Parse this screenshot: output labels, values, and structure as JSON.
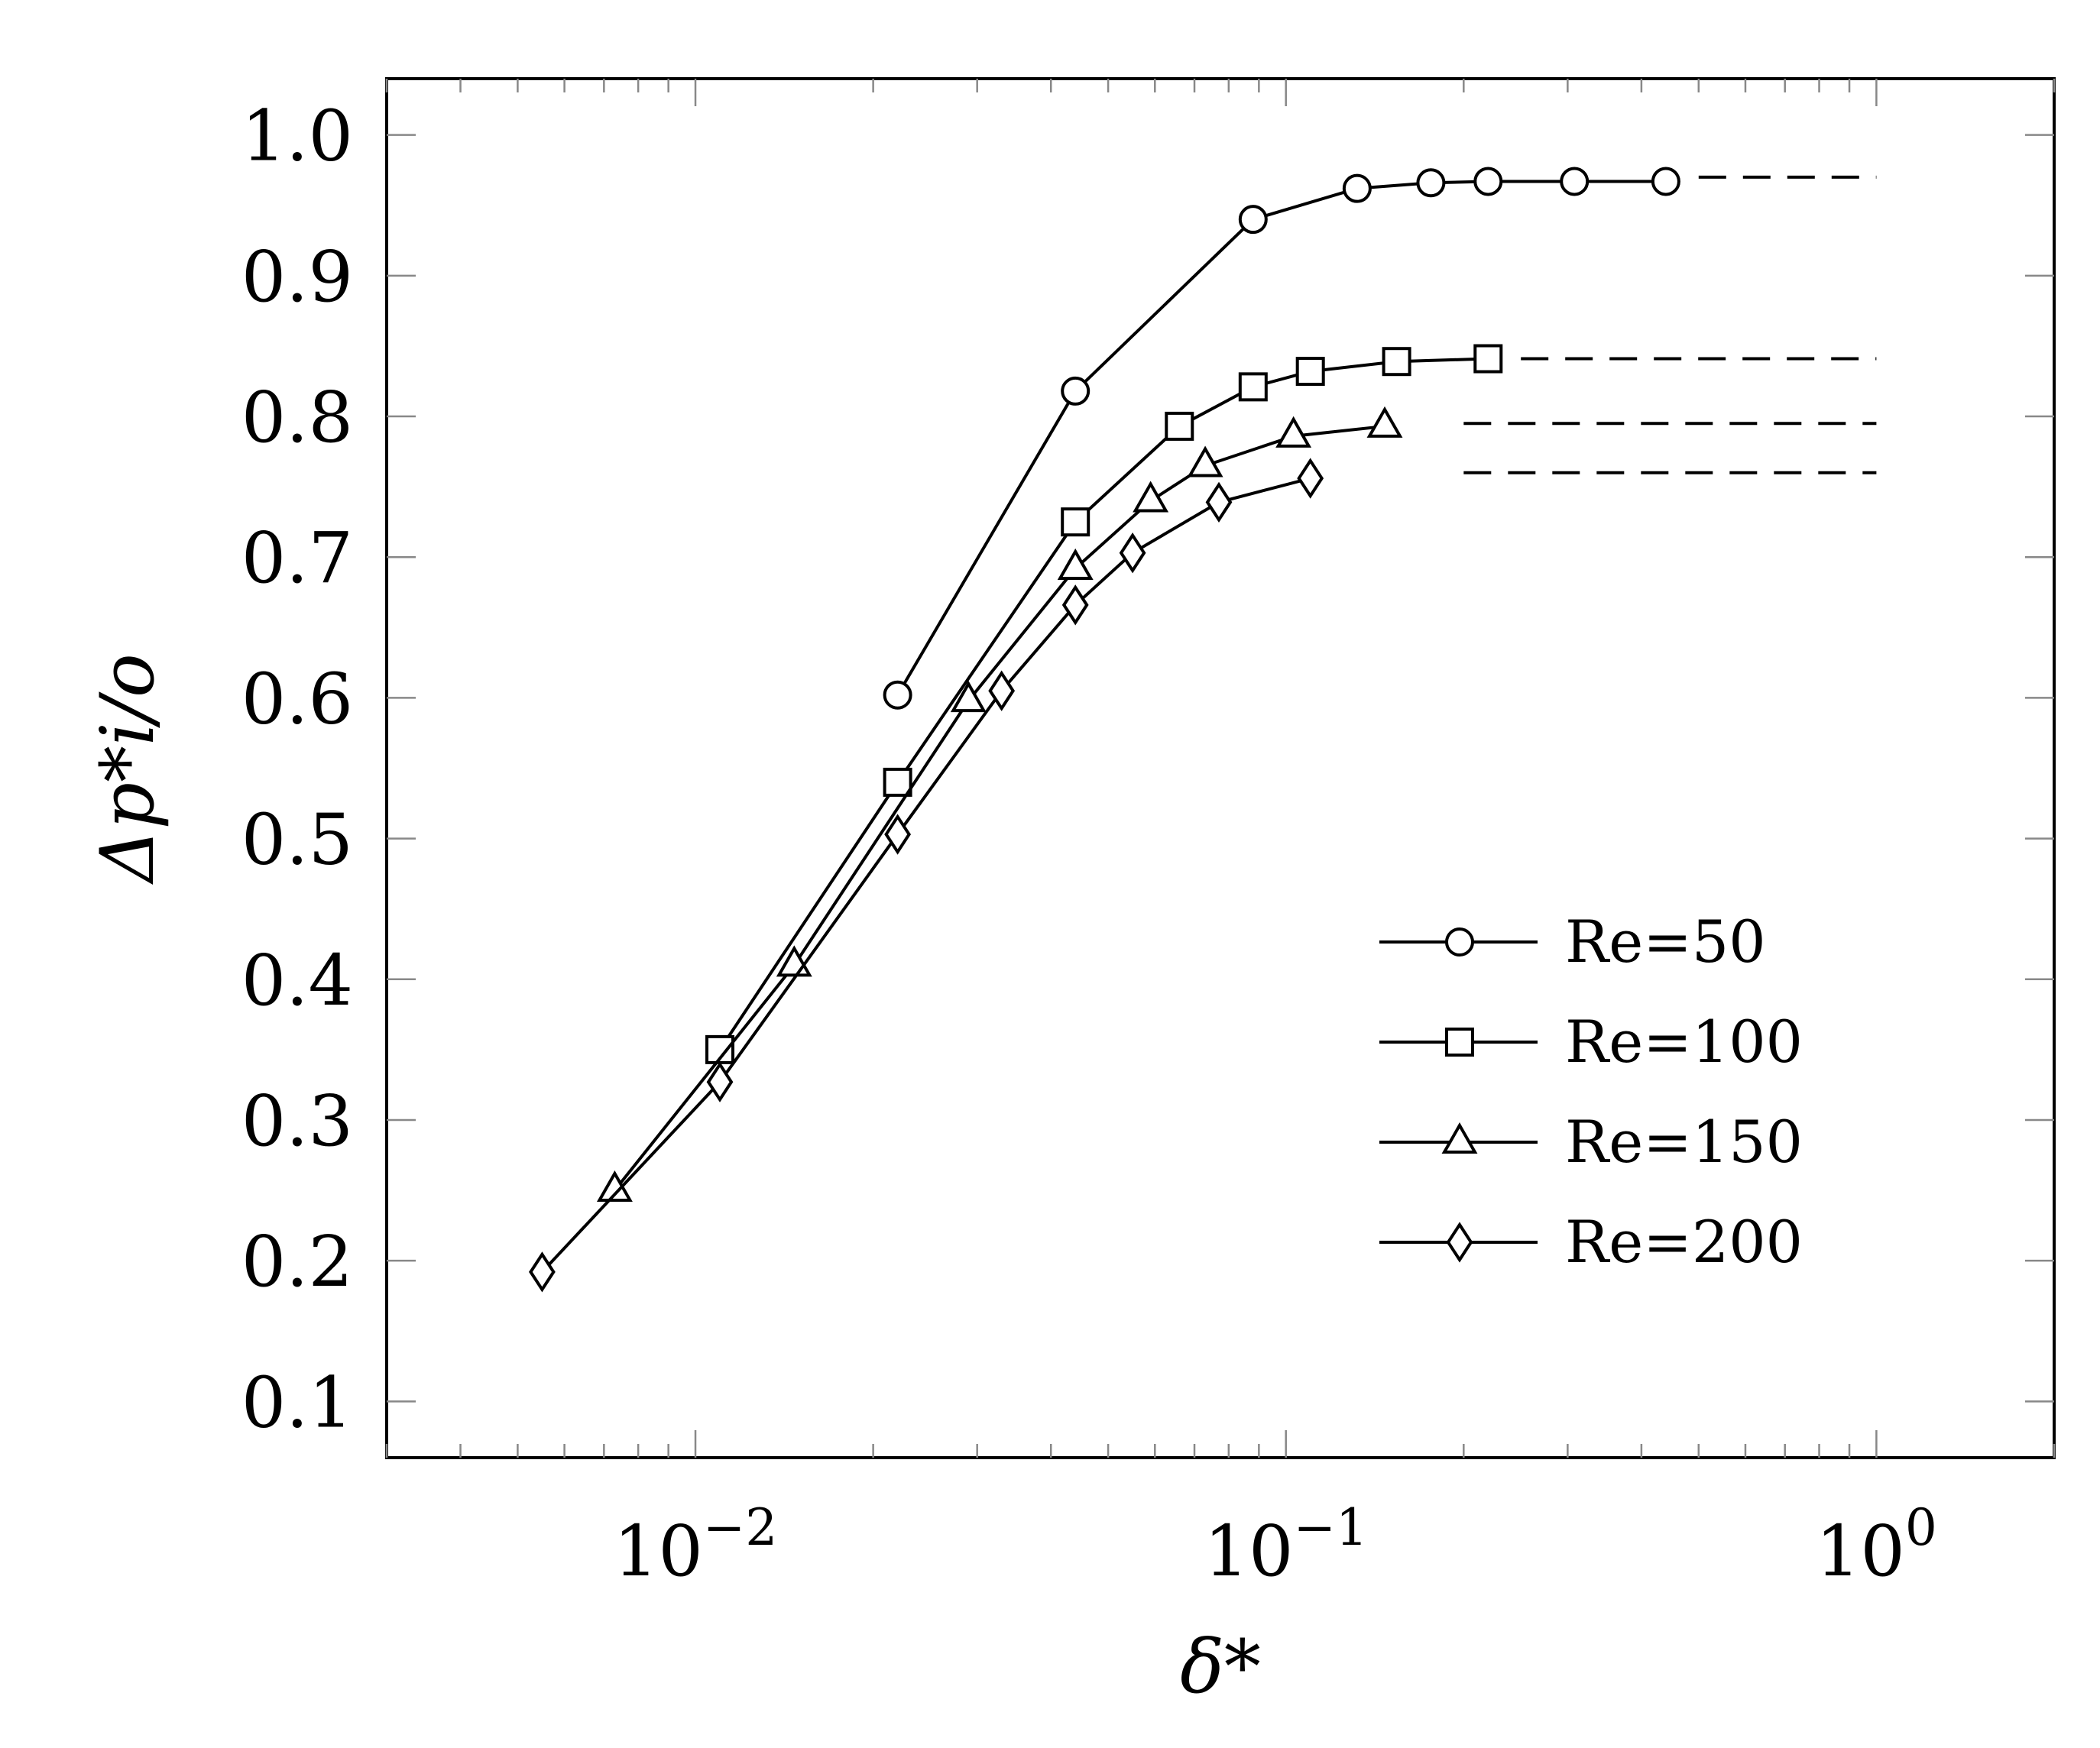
{
  "chart_data": {
    "type": "line",
    "title": "",
    "xlabel": "δ*",
    "ylabel": "Δp*i/o",
    "xscale": "log",
    "xlim": [
      0.003,
      2.0
    ],
    "ylim": [
      0.06,
      1.04
    ],
    "xticks": [
      {
        "value": 0.01,
        "base": "10",
        "exp": "−2"
      },
      {
        "value": 0.1,
        "base": "10",
        "exp": "−1"
      },
      {
        "value": 1,
        "base": "10",
        "exp": "0"
      }
    ],
    "yticks": [
      {
        "value": 0.1,
        "label": "0.1"
      },
      {
        "value": 0.2,
        "label": "0.2"
      },
      {
        "value": 0.3,
        "label": "0.3"
      },
      {
        "value": 0.4,
        "label": "0.4"
      },
      {
        "value": 0.5,
        "label": "0.5"
      },
      {
        "value": 0.6,
        "label": "0.6"
      },
      {
        "value": 0.7,
        "label": "0.7"
      },
      {
        "value": 0.8,
        "label": "0.8"
      },
      {
        "value": 0.9,
        "label": "0.9"
      },
      {
        "value": 1.0,
        "label": "1.0"
      }
    ],
    "legend_position": "bottom-right",
    "series": [
      {
        "name": "Re=50",
        "marker": "circle",
        "x": [
          0.022,
          0.044,
          0.088,
          0.132,
          0.176,
          0.22,
          0.308,
          0.44
        ],
        "y": [
          0.602,
          0.818,
          0.94,
          0.962,
          0.966,
          0.967,
          0.967,
          0.967
        ]
      },
      {
        "name": "Re=100",
        "marker": "square",
        "x": [
          0.011,
          0.022,
          0.044,
          0.066,
          0.088,
          0.11,
          0.154,
          0.22
        ],
        "y": [
          0.35,
          0.54,
          0.725,
          0.793,
          0.821,
          0.832,
          0.839,
          0.841
        ]
      },
      {
        "name": "Re=150",
        "marker": "triangle",
        "x": [
          0.0073,
          0.0147,
          0.029,
          0.044,
          0.059,
          0.073,
          0.103,
          0.147
        ],
        "y": [
          0.25,
          0.41,
          0.598,
          0.692,
          0.74,
          0.765,
          0.786,
          0.793
        ]
      },
      {
        "name": "Re=200",
        "marker": "diamond",
        "x": [
          0.0055,
          0.011,
          0.022,
          0.033,
          0.044,
          0.055,
          0.077,
          0.11
        ],
        "y": [
          0.192,
          0.327,
          0.503,
          0.605,
          0.666,
          0.703,
          0.739,
          0.756
        ]
      }
    ],
    "reference_lines": [
      {
        "series": "Re=50",
        "y": 0.97,
        "x_range": [
          0.5,
          1.0
        ],
        "style": "dashed"
      },
      {
        "series": "Re=100",
        "y": 0.841,
        "x_range": [
          0.25,
          1.0
        ],
        "style": "dashed"
      },
      {
        "series": "Re=150",
        "y": 0.795,
        "x_range": [
          0.2,
          1.0
        ],
        "style": "dashed"
      },
      {
        "series": "Re=200",
        "y": 0.76,
        "x_range": [
          0.2,
          1.0
        ],
        "style": "dashed"
      }
    ]
  }
}
